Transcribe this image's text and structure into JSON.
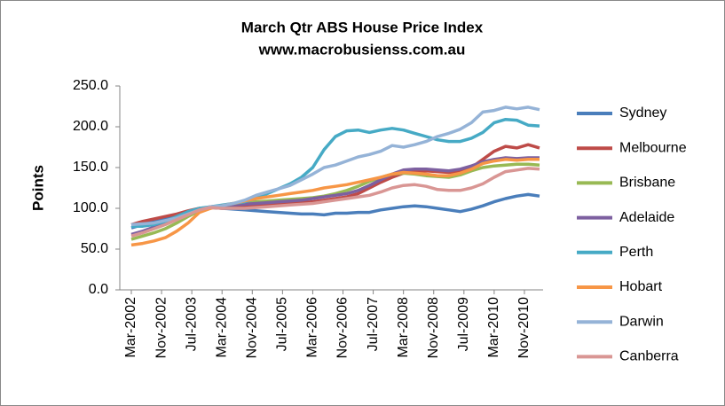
{
  "chart_data": {
    "type": "line",
    "title": "March Qtr ABS House Price Index",
    "subtitle": "www.macrobusienss.com.au",
    "y_label": "Points",
    "x": [
      "2002-03",
      "2002-06",
      "2002-09",
      "2002-12",
      "2003-03",
      "2003-06",
      "2003-09",
      "2003-12",
      "2004-03",
      "2004-06",
      "2004-09",
      "2004-12",
      "2005-03",
      "2005-06",
      "2005-09",
      "2005-12",
      "2006-03",
      "2006-06",
      "2006-09",
      "2006-12",
      "2007-03",
      "2007-06",
      "2007-09",
      "2007-12",
      "2008-03",
      "2008-06",
      "2008-09",
      "2008-12",
      "2009-03",
      "2009-06",
      "2009-09",
      "2009-12",
      "2010-03",
      "2010-06",
      "2010-09",
      "2010-12",
      "2011-03"
    ],
    "xlim": [
      "2002-03",
      "2011-03"
    ],
    "xticks": [
      {
        "value": "2002-03",
        "label": "Mar-2002"
      },
      {
        "value": "2002-11",
        "label": "Nov-2002"
      },
      {
        "value": "2003-07",
        "label": "Jul-2003"
      },
      {
        "value": "2004-03",
        "label": "Mar-2004"
      },
      {
        "value": "2004-11",
        "label": "Nov-2004"
      },
      {
        "value": "2005-07",
        "label": "Jul-2005"
      },
      {
        "value": "2006-03",
        "label": "Mar-2006"
      },
      {
        "value": "2006-11",
        "label": "Nov-2006"
      },
      {
        "value": "2007-07",
        "label": "Jul-2007"
      },
      {
        "value": "2008-03",
        "label": "Mar-2008"
      },
      {
        "value": "2008-11",
        "label": "Nov-2008"
      },
      {
        "value": "2009-07",
        "label": "Jul-2009"
      },
      {
        "value": "2010-03",
        "label": "Mar-2010"
      },
      {
        "value": "2010-11",
        "label": "Nov-2010"
      }
    ],
    "ylim": [
      0,
      250
    ],
    "yticks": [
      {
        "value": 0,
        "label": "0.0"
      },
      {
        "value": 50,
        "label": "50.0"
      },
      {
        "value": 100,
        "label": "100.0"
      },
      {
        "value": 150,
        "label": "150.0"
      },
      {
        "value": 200,
        "label": "200.0"
      },
      {
        "value": 250,
        "label": "250.0"
      }
    ],
    "grid": false,
    "legend": "right",
    "series": [
      {
        "name": "Sydney",
        "color": "#4a7ebb",
        "values": [
          76,
          80,
          84,
          88,
          92,
          96,
          99,
          101,
          100,
          99,
          98,
          97,
          96,
          95,
          94,
          93,
          93,
          92,
          94,
          94,
          95,
          95,
          98,
          100,
          102,
          103,
          102,
          100,
          98,
          96,
          99,
          103,
          108,
          112,
          115,
          117,
          115
        ]
      },
      {
        "name": "Melbourne",
        "color": "#be4b48",
        "values": [
          80,
          84,
          87,
          90,
          93,
          97,
          100,
          101,
          100,
          101,
          102,
          103,
          104,
          105,
          106,
          107,
          108,
          110,
          112,
          114,
          118,
          125,
          132,
          138,
          143,
          145,
          146,
          145,
          144,
          146,
          150,
          160,
          170,
          176,
          174,
          178,
          174
        ]
      },
      {
        "name": "Brisbane",
        "color": "#98b954",
        "values": [
          62,
          66,
          70,
          75,
          82,
          90,
          97,
          101,
          102,
          104,
          106,
          108,
          109,
          110,
          111,
          112,
          113,
          115,
          118,
          122,
          127,
          133,
          138,
          142,
          143,
          142,
          140,
          139,
          138,
          141,
          146,
          150,
          152,
          153,
          154,
          154,
          153
        ]
      },
      {
        "name": "Adelaide",
        "color": "#7d60a0",
        "values": [
          68,
          72,
          77,
          82,
          88,
          94,
          99,
          102,
          103,
          104,
          105,
          106,
          107,
          108,
          109,
          110,
          112,
          114,
          116,
          118,
          122,
          128,
          135,
          142,
          147,
          148,
          148,
          147,
          146,
          148,
          152,
          157,
          160,
          162,
          161,
          162,
          162
        ]
      },
      {
        "name": "Perth",
        "color": "#46aac5",
        "values": [
          78,
          78,
          80,
          84,
          90,
          96,
          100,
          102,
          104,
          106,
          108,
          112,
          118,
          124,
          130,
          138,
          150,
          172,
          188,
          195,
          196,
          193,
          196,
          198,
          196,
          192,
          188,
          184,
          182,
          182,
          186,
          193,
          205,
          209,
          208,
          202,
          201
        ]
      },
      {
        "name": "Hobart",
        "color": "#f79646",
        "values": [
          55,
          57,
          60,
          64,
          72,
          82,
          95,
          100,
          103,
          106,
          109,
          112,
          114,
          116,
          118,
          120,
          122,
          125,
          127,
          129,
          132,
          135,
          138,
          142,
          144,
          143,
          142,
          140,
          140,
          143,
          148,
          155,
          158,
          160,
          159,
          160,
          160
        ]
      },
      {
        "name": "Darwin",
        "color": "#95b3d7",
        "values": [
          80,
          81,
          82,
          85,
          88,
          93,
          98,
          102,
          103,
          106,
          110,
          116,
          120,
          124,
          128,
          135,
          142,
          150,
          153,
          158,
          163,
          166,
          170,
          177,
          175,
          178,
          182,
          188,
          192,
          197,
          205,
          218,
          220,
          224,
          222,
          224,
          221
        ]
      },
      {
        "name": "Canberra",
        "color": "#d99694",
        "values": [
          66,
          70,
          75,
          80,
          86,
          92,
          98,
          101,
          100,
          100,
          100,
          101,
          102,
          103,
          104,
          105,
          106,
          108,
          110,
          112,
          114,
          116,
          120,
          125,
          128,
          129,
          127,
          123,
          122,
          122,
          125,
          130,
          138,
          145,
          147,
          149,
          148
        ]
      }
    ]
  }
}
